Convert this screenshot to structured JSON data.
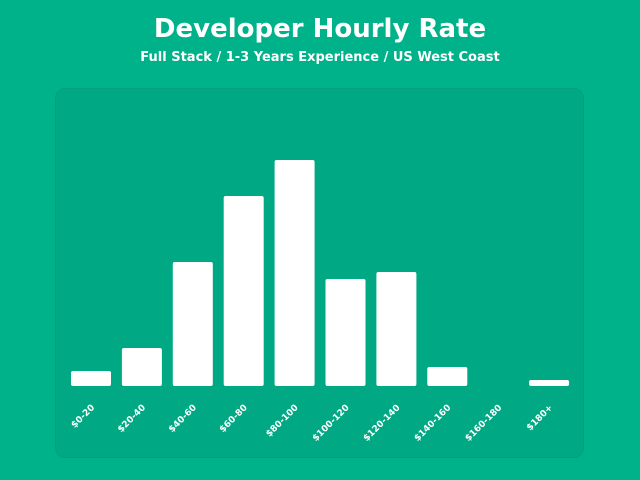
{
  "chart_data": {
    "type": "bar",
    "title": "Developer Hourly Rate",
    "subtitle": "Full Stack / 1-3 Years Experience / US West Coast",
    "categories": [
      "$0-20",
      "$20-40",
      "$40-60",
      "$60-80",
      "$80-100",
      "$100-120",
      "$120-140",
      "$140-160",
      "$160-180",
      "$180+"
    ],
    "values": [
      15,
      38,
      124,
      190,
      226,
      107,
      114,
      19,
      0,
      6
    ],
    "ylim": [
      0,
      240
    ],
    "grid": false,
    "y_axis_shown": false,
    "colors": {
      "background": "#00b28a",
      "panel": "#00a883",
      "bar": "#ffffff",
      "text": "#ffffff"
    }
  }
}
